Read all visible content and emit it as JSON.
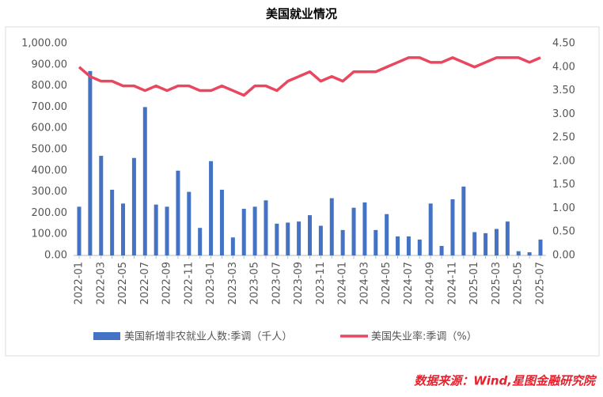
{
  "chart_data": {
    "type": "bar_line",
    "title": "美国就业情况",
    "source": "数据来源：Wind,星图金融研究院",
    "categories": [
      "2022-01",
      null,
      "2022-03",
      null,
      "2022-05",
      null,
      "2022-07",
      null,
      "2022-09",
      null,
      "2022-11",
      null,
      "2023-01",
      null,
      "2023-03",
      null,
      "2023-05",
      null,
      "2023-07",
      null,
      "2023-09",
      null,
      "2023-11",
      null,
      "2024-01",
      null,
      "2024-03",
      null,
      "2024-05",
      null,
      "2024-07",
      null,
      "2024-09",
      null,
      "2024-11",
      null,
      "2025-01",
      null,
      "2025-03",
      null,
      "2025-05",
      null,
      "2025-07"
    ],
    "series": [
      {
        "name": "美国新增非农就业人数:季调（千人）",
        "type": "bar",
        "color": "#4472c4",
        "values": [
          230,
          870,
          470,
          310,
          245,
          460,
          700,
          240,
          230,
          400,
          300,
          130,
          445,
          310,
          85,
          220,
          230,
          260,
          150,
          155,
          160,
          190,
          140,
          270,
          120,
          225,
          250,
          120,
          195,
          90,
          90,
          75,
          245,
          45,
          265,
          325,
          110,
          105,
          125,
          160,
          20,
          15,
          75
        ]
      },
      {
        "name": "美国失业率:季调（%）",
        "type": "line",
        "axis": "y2",
        "color": "#e8475f",
        "values": [
          4.0,
          3.8,
          3.7,
          3.7,
          3.6,
          3.6,
          3.5,
          3.6,
          3.5,
          3.6,
          3.6,
          3.5,
          3.5,
          3.6,
          3.5,
          3.4,
          3.6,
          3.6,
          3.5,
          3.7,
          3.8,
          3.9,
          3.7,
          3.8,
          3.7,
          3.9,
          3.9,
          3.9,
          4.0,
          4.1,
          4.2,
          4.2,
          4.1,
          4.1,
          4.2,
          4.1,
          4.0,
          4.1,
          4.2,
          4.2,
          4.2,
          4.1,
          4.2
        ]
      }
    ],
    "ylim": [
      0,
      1000
    ],
    "yticks": [
      {
        "value": 0,
        "label": "0.00"
      },
      {
        "value": 100,
        "label": "100.00"
      },
      {
        "value": 200,
        "label": "200.00"
      },
      {
        "value": 300,
        "label": "300.00"
      },
      {
        "value": 400,
        "label": "400.00"
      },
      {
        "value": 500,
        "label": "500.00"
      },
      {
        "value": 600,
        "label": "600.00"
      },
      {
        "value": 700,
        "label": "700.00"
      },
      {
        "value": 800,
        "label": "800.00"
      },
      {
        "value": 900,
        "label": "900.00"
      },
      {
        "value": 1000,
        "label": "1,000.00"
      }
    ],
    "y2lim": [
      0,
      4.5
    ],
    "y2ticks": [
      {
        "value": 0,
        "label": "0.00"
      },
      {
        "value": 0.5,
        "label": "0.50"
      },
      {
        "value": 1,
        "label": "1.00"
      },
      {
        "value": 1.5,
        "label": "1.50"
      },
      {
        "value": 2,
        "label": "2.00"
      },
      {
        "value": 2.5,
        "label": "2.50"
      },
      {
        "value": 3,
        "label": "3.00"
      },
      {
        "value": 3.5,
        "label": "3.50"
      },
      {
        "value": 4,
        "label": "4.00"
      },
      {
        "value": 4.5,
        "label": "4.50"
      }
    ],
    "legend": "bottom"
  }
}
